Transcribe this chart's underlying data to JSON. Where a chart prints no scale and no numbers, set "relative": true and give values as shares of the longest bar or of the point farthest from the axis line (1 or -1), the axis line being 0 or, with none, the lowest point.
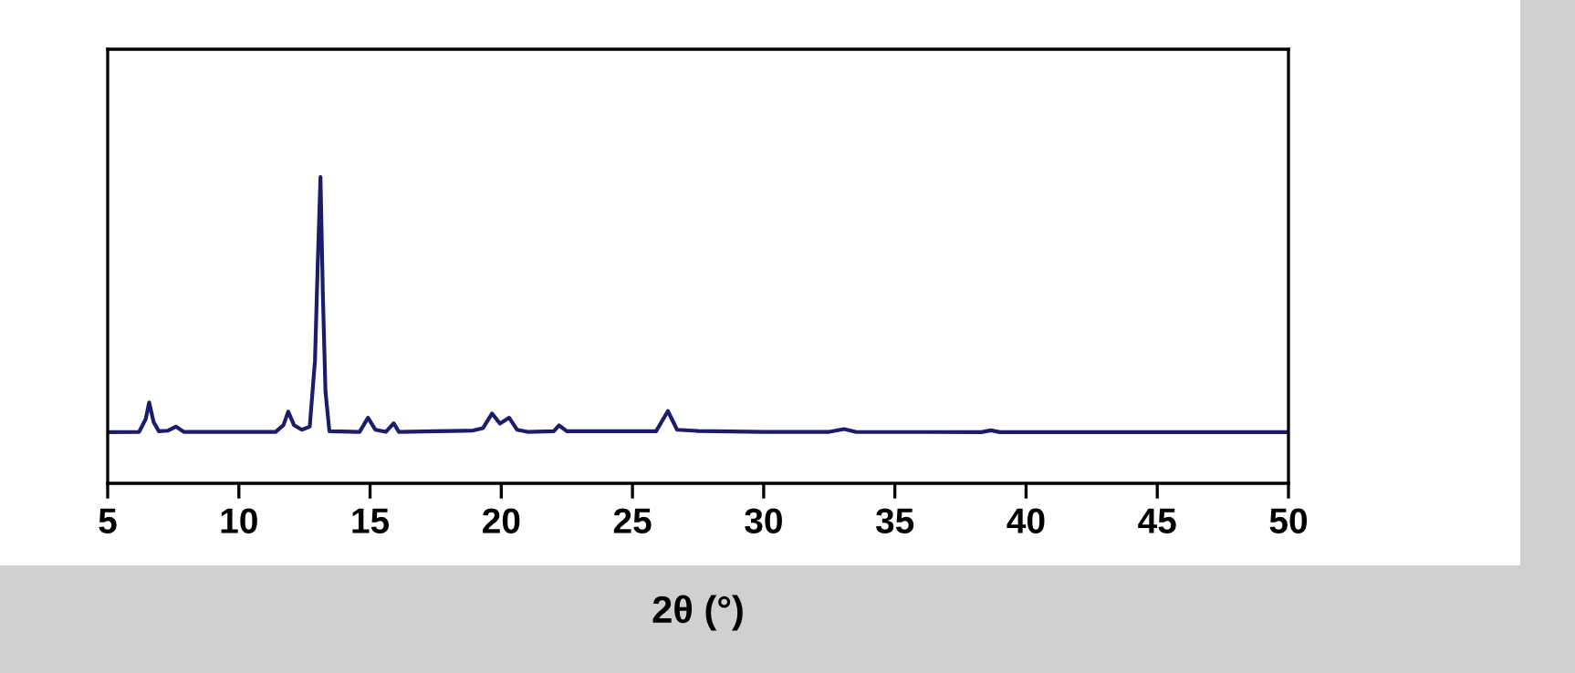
{
  "chart_data": {
    "type": "line",
    "xlabel": "2θ (°)",
    "relative": true,
    "color": "#1c1c6c",
    "x": [
      5.0,
      6.2,
      6.45,
      6.58,
      6.75,
      6.95,
      7.3,
      7.6,
      7.9,
      11.4,
      11.7,
      11.88,
      12.1,
      12.4,
      12.7,
      12.9,
      13.0,
      13.11,
      13.2,
      13.3,
      13.45,
      14.6,
      14.92,
      15.2,
      15.6,
      15.9,
      16.1,
      17.5,
      18.9,
      19.3,
      19.65,
      19.95,
      20.3,
      20.6,
      21.0,
      22.0,
      22.2,
      22.5,
      25.9,
      26.35,
      26.7,
      27.5,
      30.0,
      32.5,
      33.07,
      33.5,
      38.3,
      38.66,
      39.0,
      50.0
    ],
    "values": [
      0.167,
      0.168,
      0.21,
      0.264,
      0.2,
      0.17,
      0.172,
      0.185,
      0.168,
      0.168,
      0.19,
      0.234,
      0.19,
      0.175,
      0.185,
      0.4,
      0.7,
      1.0,
      0.62,
      0.3,
      0.17,
      0.168,
      0.214,
      0.175,
      0.168,
      0.196,
      0.168,
      0.17,
      0.172,
      0.18,
      0.228,
      0.195,
      0.214,
      0.175,
      0.168,
      0.17,
      0.189,
      0.17,
      0.17,
      0.236,
      0.175,
      0.171,
      0.168,
      0.168,
      0.177,
      0.168,
      0.167,
      0.173,
      0.167,
      0.167
    ],
    "xlim": [
      5,
      50
    ],
    "xticks": [
      5,
      10,
      15,
      20,
      25,
      30,
      35,
      40,
      45,
      50
    ],
    "grid": false,
    "legend": false,
    "tick_labels": "x"
  }
}
